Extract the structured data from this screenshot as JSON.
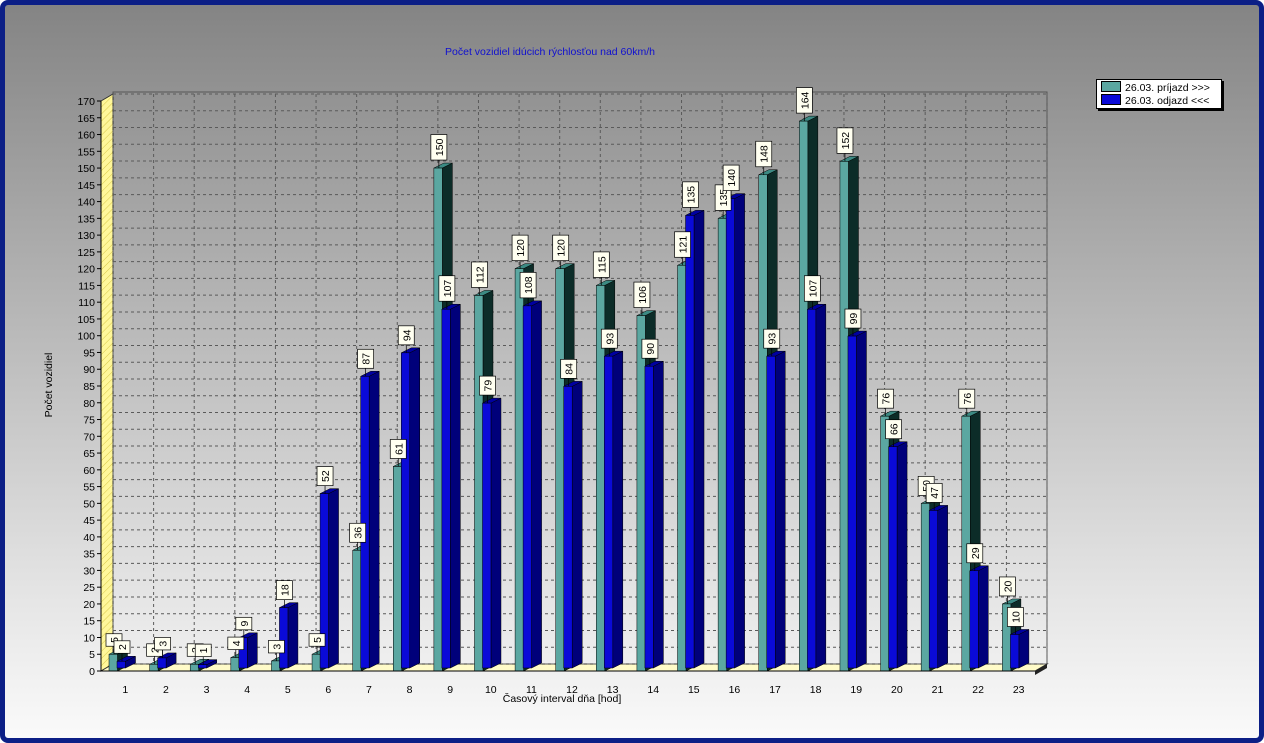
{
  "chart_data": {
    "type": "bar",
    "title": "Počet vozidiel idúcich rýchlosťou nad 60km/h",
    "xlabel": "Časový interval dňa [hod]",
    "ylabel": "Počet vozidiel",
    "categories": [
      "1",
      "2",
      "3",
      "4",
      "5",
      "6",
      "7",
      "8",
      "9",
      "10",
      "11",
      "12",
      "13",
      "14",
      "15",
      "16",
      "17",
      "18",
      "19",
      "20",
      "21",
      "22",
      "23"
    ],
    "series": [
      {
        "name": "26.03.  príjazd >>>",
        "color": "#5ba7a1",
        "values": [
          5,
          2,
          2,
          4,
          3,
          5,
          36,
          61,
          150,
          112,
          120,
          120,
          115,
          106,
          121,
          135,
          148,
          164,
          152,
          76,
          50,
          76,
          20
        ]
      },
      {
        "name": "26.03.  odjazd <<<",
        "color": "#0a0ad8",
        "values": [
          2,
          3,
          1,
          9,
          18,
          52,
          87,
          94,
          107,
          79,
          108,
          84,
          93,
          90,
          135,
          140,
          93,
          107,
          99,
          66,
          47,
          29,
          10
        ]
      }
    ],
    "ylim": [
      0,
      170
    ],
    "ytick_step": 5,
    "grid": true,
    "legend_position": "top-right"
  }
}
